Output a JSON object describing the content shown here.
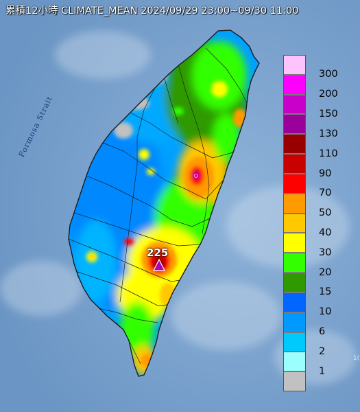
{
  "title": "累積12小時 CLIMATE_MEAN 2024/09/29 23:00~09/30 11:00",
  "strait_label": "Formosa Strait",
  "max_station": {
    "value_label": "225",
    "marker": "triangle-marker-icon"
  },
  "legend": {
    "levels": [
      {
        "label": "300",
        "color": "#fdc3fd"
      },
      {
        "label": "200",
        "color": "#fc00fc"
      },
      {
        "label": "150",
        "color": "#c800c9"
      },
      {
        "label": "130",
        "color": "#9b009b"
      },
      {
        "label": "110",
        "color": "#980000"
      },
      {
        "label": "90",
        "color": "#c80000"
      },
      {
        "label": "70",
        "color": "#fd0000"
      },
      {
        "label": "50",
        "color": "#ff9a00"
      },
      {
        "label": "40",
        "color": "#ffc800"
      },
      {
        "label": "30",
        "color": "#ffff00"
      },
      {
        "label": "20",
        "color": "#33ff00"
      },
      {
        "label": "15",
        "color": "#2e9a00"
      },
      {
        "label": "10",
        "color": "#0066ff"
      },
      {
        "label": "6",
        "color": "#009afe"
      },
      {
        "label": "2",
        "color": "#00cafc"
      },
      {
        "label": "1",
        "color": "#9bfffe"
      },
      {
        "label": "",
        "color": "#c1c1c1"
      }
    ]
  },
  "corner_mark": "1("
}
